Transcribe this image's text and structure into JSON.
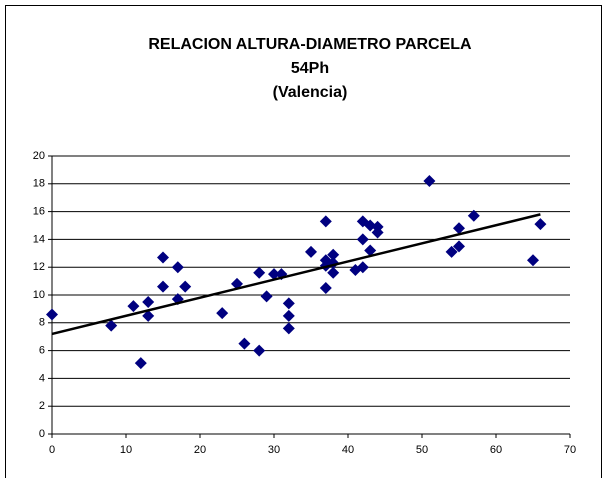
{
  "chart_data": {
    "type": "scatter",
    "title": [
      "RELACION ALTURA-DIAMETRO PARCELA",
      "54Ph",
      "(Valencia)"
    ],
    "x": [
      0,
      8,
      11,
      12,
      13,
      13,
      15,
      15,
      17,
      17,
      18,
      23,
      25,
      26,
      28,
      28,
      29,
      30,
      31,
      32,
      32,
      32,
      35,
      37,
      37,
      37,
      37,
      38,
      38,
      38,
      41,
      42,
      42,
      42,
      43,
      43,
      44,
      44,
      51,
      54,
      55,
      55,
      57,
      65,
      66
    ],
    "values": [
      8.6,
      7.8,
      9.2,
      5.1,
      9.5,
      8.5,
      12.7,
      10.6,
      12.0,
      9.7,
      10.6,
      8.7,
      10.8,
      6.5,
      11.6,
      6.0,
      9.9,
      11.5,
      11.5,
      9.4,
      8.5,
      7.6,
      13.1,
      15.3,
      12.5,
      12.1,
      10.5,
      12.9,
      12.3,
      11.6,
      11.8,
      15.3,
      14.0,
      12.0,
      15.0,
      13.2,
      14.9,
      14.5,
      18.2,
      13.1,
      14.8,
      13.5,
      15.7,
      12.5,
      15.1
    ],
    "color": "#000080",
    "trendline": {
      "x": [
        0,
        66
      ],
      "values": [
        7.2,
        15.8
      ],
      "color": "#000000"
    },
    "xlim": [
      0,
      70
    ],
    "xticks": [
      0,
      10,
      20,
      30,
      40,
      50,
      60,
      70
    ],
    "ylim": [
      0,
      20
    ],
    "yticks": [
      0,
      2,
      4,
      6,
      8,
      10,
      12,
      14,
      16,
      18,
      20
    ],
    "grid": true
  }
}
